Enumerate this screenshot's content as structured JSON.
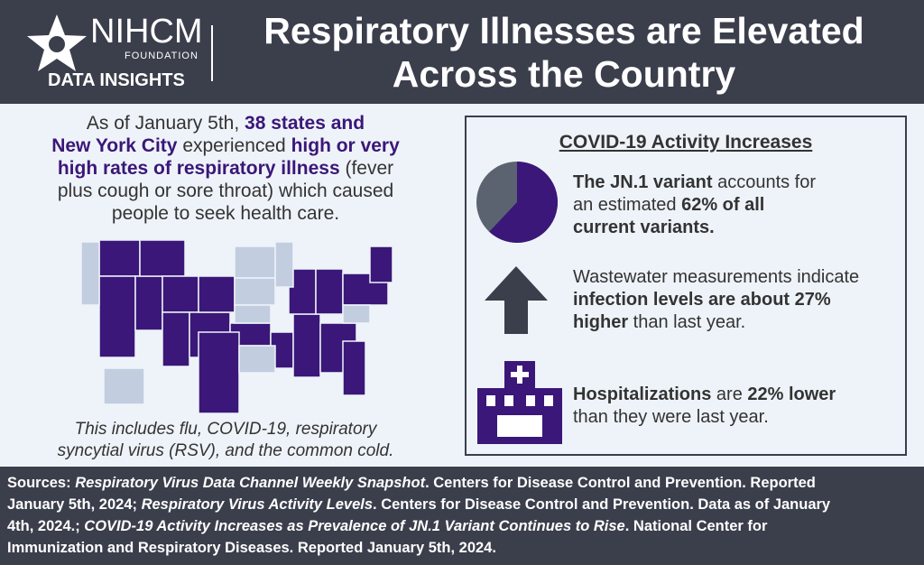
{
  "header": {
    "logo_name": "NIHCM",
    "logo_sub": "FOUNDATION",
    "logo_tag": "DATA INSIGHTS",
    "title_lines": [
      "Respiratory Illnesses are Elevated",
      "Across the Country"
    ]
  },
  "left": {
    "lines": [
      [
        {
          "text": "As of January 5th, "
        },
        {
          "text": "38 states and",
          "style": "b"
        }
      ],
      [
        {
          "text": "New York City",
          "style": "b"
        },
        {
          "text": " experienced "
        },
        {
          "text": "high or very",
          "style": "b"
        }
      ],
      [
        {
          "text": "high rates of respiratory illness",
          "style": "b"
        },
        {
          "text": " (fever"
        }
      ],
      [
        {
          "text": "plus cough or sore throat) which caused"
        }
      ],
      [
        {
          "text": "people to seek health care."
        }
      ]
    ],
    "caption_lines": [
      "This includes flu, COVID-19, respiratory",
      "syncytial virus (RSV), and the common cold."
    ]
  },
  "panel": {
    "title": "COVID-19 Activity Increases",
    "pie_percent": 62,
    "items": [
      {
        "lines": [
          [
            {
              "text": "The JN.1 variant",
              "style": "b"
            },
            {
              "text": " accounts for"
            }
          ],
          [
            {
              "text": "an estimated "
            },
            {
              "text": "62% of all",
              "style": "b"
            }
          ],
          [
            {
              "text": "current variants.",
              "style": "b"
            }
          ]
        ]
      },
      {
        "lines": [
          [
            {
              "text": "Wastewater measurements indicate"
            }
          ],
          [
            {
              "text": "infection levels are about 27%",
              "style": "b"
            }
          ],
          [
            {
              "text": "higher",
              "style": "b"
            },
            {
              "text": " than last year."
            }
          ]
        ]
      },
      {
        "lines": [
          [
            {
              "text": "Hospitalizations",
              "style": "b"
            },
            {
              "text": " are "
            },
            {
              "text": "22% lower",
              "style": "b"
            }
          ],
          [
            {
              "text": "than they were last year."
            }
          ]
        ]
      }
    ]
  },
  "footer": {
    "lines": [
      [
        {
          "text": "Sources: "
        },
        {
          "text": "Respiratory Virus Data Channel Weekly Snapshot",
          "style": "i"
        },
        {
          "text": ". Centers for Disease Control and Prevention. Reported"
        }
      ],
      [
        {
          "text": "January 5th, 2024; "
        },
        {
          "text": "Respiratory Virus Activity Levels",
          "style": "i"
        },
        {
          "text": ". Centers for Disease Control and Prevention. Data as of January"
        }
      ],
      [
        {
          "text": "4th, 2024.; "
        },
        {
          "text": "COVID-19 Activity Increases as Prevalence of JN.1 Variant Continues to Rise",
          "style": "i"
        },
        {
          "text": ". National Center for"
        }
      ],
      [
        {
          "text": "Immunization and Respiratory Diseases. Reported January 5th, 2024."
        }
      ]
    ]
  }
}
